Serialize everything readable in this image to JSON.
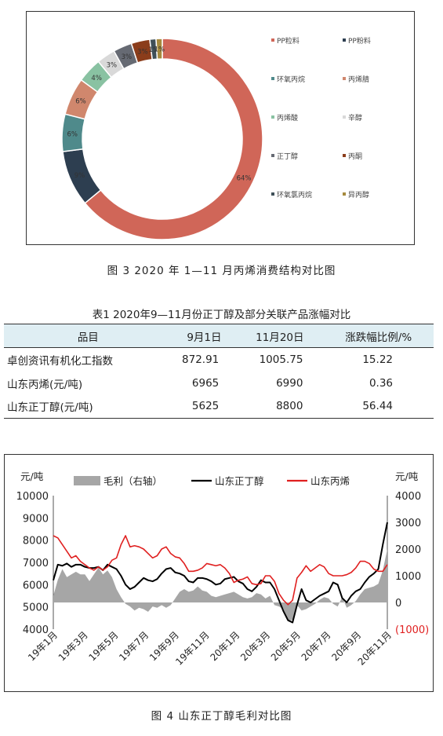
{
  "figure3": {
    "caption": "图 3   2020 年 1—11 月丙烯消费结构对比图",
    "chart_data": {
      "type": "pie",
      "donut": true,
      "slices": [
        {
          "name": "PP粒料",
          "value": 64,
          "color": "#d06658"
        },
        {
          "name": "PP粉料",
          "value": 9,
          "color": "#2d3e50"
        },
        {
          "name": "环氧丙烷",
          "value": 6,
          "color": "#4f8a8b"
        },
        {
          "name": "丙烯腈",
          "value": 6,
          "color": "#d0876d"
        },
        {
          "name": "丙烯酸",
          "value": 4,
          "color": "#89c2a2"
        },
        {
          "name": "辛醇",
          "value": 3,
          "color": "#d9d9d9"
        },
        {
          "name": "正丁醇",
          "value": 3,
          "color": "#666a73"
        },
        {
          "name": "丙酮",
          "value": 3,
          "color": "#8b3d1b"
        },
        {
          "name": "环氧氯丙烷",
          "value": 1,
          "color": "#3f5058"
        },
        {
          "name": "异丙醇",
          "value": 1,
          "color": "#a68a3e"
        }
      ],
      "slice_labels": [
        "64%",
        "9%",
        "6%",
        "6%",
        "4%",
        "3%",
        "3%",
        "3%",
        "1%",
        "1%"
      ],
      "legend": [
        "PP粒料",
        "PP粉料",
        "环氧丙烷",
        "丙烯腈",
        "丙烯酸",
        "辛醇",
        "正丁醇",
        "丙酮",
        "环氧氯丙烷",
        "异丙醇"
      ],
      "legend_position": "right"
    }
  },
  "table1": {
    "title": "表1  2020年9—11月份正丁醇及部分关联产品涨幅对比",
    "headers": [
      "品目",
      "9月1日",
      "11月20日",
      "涨跌幅比例/%"
    ],
    "rows": [
      [
        "卓创资讯有机化工指数",
        "872.91",
        "1005.75",
        "15.22"
      ],
      [
        "山东丙烯(元/吨)",
        "6965",
        "6990",
        "0.36"
      ],
      [
        "山东正丁醇(元/吨)",
        "5625",
        "8800",
        "56.44"
      ]
    ],
    "header_bg": "#dfeef3"
  },
  "figure4": {
    "caption": "图 4   山东正丁醇毛利对比图",
    "chart_data": {
      "type": "line",
      "left_axis_unit": "元/吨",
      "right_axis_unit": "元/吨",
      "left_ticks": [
        "10000",
        "9000",
        "8000",
        "7000",
        "6000",
        "5000",
        "4000"
      ],
      "right_ticks": [
        "4000",
        "3000",
        "2000",
        "1000",
        "0",
        "(1000)"
      ],
      "x_ticks": [
        "19年1月",
        "19年3月",
        "19年5月",
        "19年7月",
        "19年9月",
        "19年11月",
        "20年1月",
        "20年3月",
        "20年5月",
        "20年7月",
        "20年9月",
        "20年11月"
      ],
      "left_ylim": [
        4000,
        10000
      ],
      "right_ylim": [
        -1000,
        4000
      ],
      "series": [
        {
          "name": "毛利（右轴）",
          "type": "area",
          "axis": "right",
          "color": "#a6a6a6",
          "values": [
            250,
            850,
            1250,
            950,
            1050,
            1150,
            1050,
            1050,
            800,
            1050,
            1300,
            1050,
            1200,
            950,
            500,
            200,
            -50,
            -150,
            -300,
            -200,
            -250,
            -350,
            -150,
            -200,
            -100,
            -200,
            -100,
            150,
            400,
            500,
            400,
            450,
            600,
            450,
            400,
            250,
            200,
            250,
            300,
            350,
            400,
            300,
            200,
            150,
            200,
            350,
            300,
            150,
            250,
            -100,
            -150,
            -250,
            -700,
            -650,
            -100,
            -300,
            -250,
            -150,
            -50,
            100,
            200,
            150,
            -50,
            -150,
            200,
            -200,
            -100,
            50,
            300,
            500,
            550,
            600,
            700,
            1200,
            2000
          ]
        },
        {
          "name": "山东正丁醇",
          "type": "line",
          "axis": "left",
          "color": "#000000",
          "values": [
            6200,
            6900,
            6850,
            6950,
            6800,
            6900,
            6900,
            6800,
            6750,
            6750,
            6800,
            6650,
            6900,
            6800,
            6700,
            6400,
            6000,
            5800,
            5900,
            6100,
            6300,
            6200,
            6150,
            6250,
            6500,
            6700,
            6750,
            6550,
            6500,
            6400,
            6150,
            6100,
            6300,
            6300,
            6250,
            6150,
            6000,
            6050,
            6250,
            6300,
            6350,
            6150,
            6050,
            5800,
            5700,
            5900,
            6200,
            6100,
            6100,
            5800,
            5300,
            4800,
            4400,
            4300,
            5100,
            5800,
            5300,
            5200,
            5350,
            5500,
            5600,
            5700,
            6100,
            6000,
            5400,
            5200,
            5500,
            5700,
            5800,
            6100,
            6350,
            6500,
            6700,
            7800,
            8800
          ]
        },
        {
          "name": "山东丙烯",
          "type": "line",
          "axis": "right_price",
          "color": "#e02020",
          "values": [
            8200,
            8100,
            7800,
            7500,
            7200,
            7300,
            7050,
            6900,
            6750,
            6650,
            6800,
            6650,
            6800,
            7100,
            7200,
            7800,
            8200,
            7700,
            7750,
            7700,
            7600,
            7400,
            7200,
            7300,
            7600,
            7700,
            7400,
            7250,
            7200,
            6950,
            6600,
            6600,
            6650,
            6750,
            6950,
            6900,
            6850,
            6900,
            6750,
            6500,
            6100,
            6200,
            6250,
            6350,
            6050,
            6000,
            6050,
            6400,
            6400,
            6150,
            5600,
            5300,
            5100,
            5300,
            6300,
            6550,
            6850,
            6600,
            6750,
            6900,
            6800,
            6500,
            6400,
            6400,
            6400,
            6450,
            6550,
            6750,
            7050,
            7050,
            6950,
            6700,
            6600,
            6600,
            6900
          ]
        }
      ],
      "legend": [
        "毛利（右轴）",
        "山东正丁醇",
        "山东丙烯"
      ],
      "legend_position": "top"
    }
  }
}
